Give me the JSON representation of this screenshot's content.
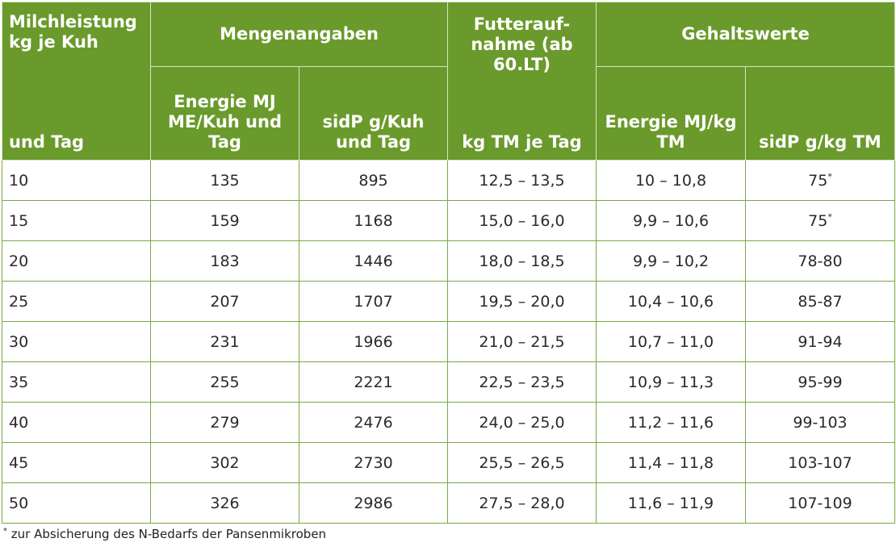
{
  "header": {
    "col1_top": "Milchleistung kg je Kuh",
    "col1_bottom": "und Tag",
    "group_mengen": "Mengenangaben",
    "energie_amount": "Energie MJ ME/Kuh und Tag",
    "sidp_amount": "sidP g/Kuh und Tag",
    "futter_top": "Futterauf- nahme (ab 60.LT)",
    "futter_bottom": "kg TM je Tag",
    "group_gehalt": "Gehaltswerte",
    "energie_content": "Energie MJ/kg TM",
    "sidp_content": "sidP g/kg TM"
  },
  "rows": [
    {
      "milk": "10",
      "energie": "135",
      "sidp": "895",
      "futter": "12,5 – 13,5",
      "energie_gehalt": "10 – 10,8",
      "sidp_gehalt": "75",
      "footnote_mark": "*"
    },
    {
      "milk": "15",
      "energie": "159",
      "sidp": "1168",
      "futter": "15,0 – 16,0",
      "energie_gehalt": "9,9 – 10,6",
      "sidp_gehalt": "75",
      "footnote_mark": "*"
    },
    {
      "milk": "20",
      "energie": "183",
      "sidp": "1446",
      "futter": "18,0 – 18,5",
      "energie_gehalt": "9,9 – 10,2",
      "sidp_gehalt": "78-80",
      "footnote_mark": ""
    },
    {
      "milk": "25",
      "energie": "207",
      "sidp": "1707",
      "futter": "19,5 – 20,0",
      "energie_gehalt": "10,4 – 10,6",
      "sidp_gehalt": "85-87",
      "footnote_mark": ""
    },
    {
      "milk": "30",
      "energie": "231",
      "sidp": "1966",
      "futter": "21,0 – 21,5",
      "energie_gehalt": "10,7 – 11,0",
      "sidp_gehalt": "91-94",
      "footnote_mark": ""
    },
    {
      "milk": "35",
      "energie": "255",
      "sidp": "2221",
      "futter": "22,5 – 23,5",
      "energie_gehalt": "10,9 – 11,3",
      "sidp_gehalt": "95-99",
      "footnote_mark": ""
    },
    {
      "milk": "40",
      "energie": "279",
      "sidp": "2476",
      "futter": "24,0 – 25,0",
      "energie_gehalt": "11,2 – 11,6",
      "sidp_gehalt": "99-103",
      "footnote_mark": ""
    },
    {
      "milk": "45",
      "energie": "302",
      "sidp": "2730",
      "futter": "25,5 – 26,5",
      "energie_gehalt": "11,4 – 11,8",
      "sidp_gehalt": "103-107",
      "footnote_mark": ""
    },
    {
      "milk": "50",
      "energie": "326",
      "sidp": "2986",
      "futter": "27,5 – 28,0",
      "energie_gehalt": "11,6 – 11,9",
      "sidp_gehalt": "107-109",
      "footnote_mark": ""
    }
  ],
  "footnote": {
    "mark": "*",
    "text": "zur Absicherung des N-Bedarfs der Pansenmikroben"
  },
  "colors": {
    "header_bg": "#6a9a2b",
    "grid_line": "#7aa843"
  }
}
